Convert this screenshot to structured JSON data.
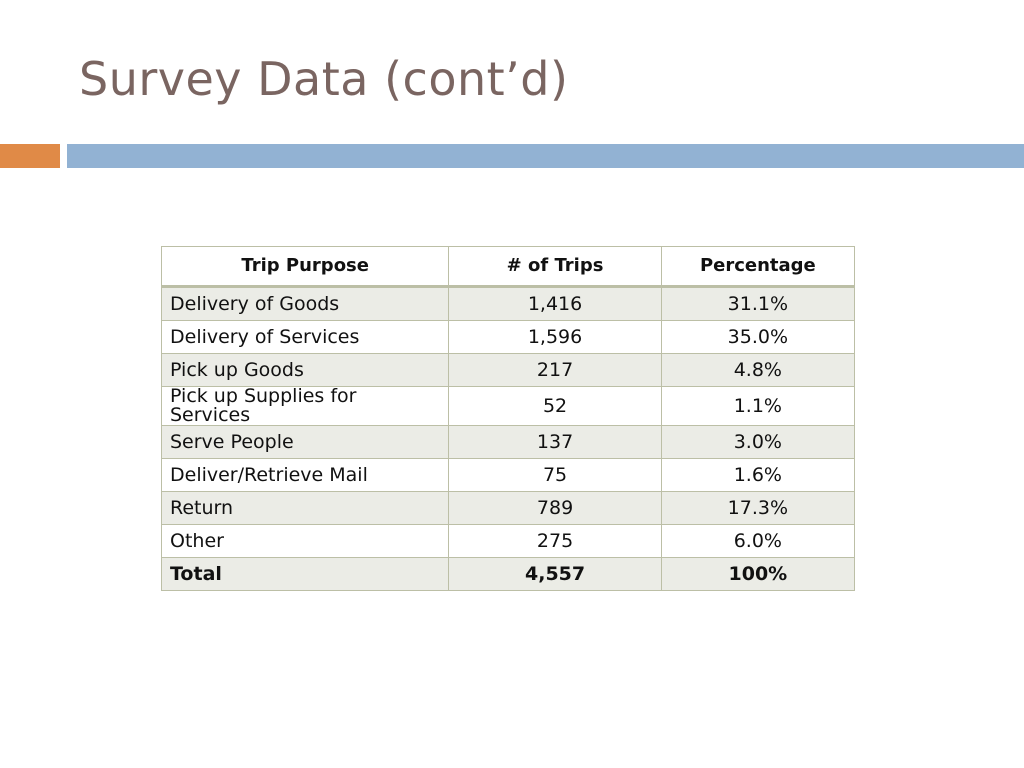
{
  "slide": {
    "title": "Survey Data (cont’d)"
  },
  "table": {
    "headers": [
      "Trip Purpose",
      "# of Trips",
      "Percentage"
    ],
    "rows": [
      {
        "purpose": "Delivery of Goods",
        "trips": "1,416",
        "pct": "31.1%"
      },
      {
        "purpose": "Delivery of Services",
        "trips": "1,596",
        "pct": "35.0%"
      },
      {
        "purpose": "Pick up Goods",
        "trips": "217",
        "pct": "4.8%"
      },
      {
        "purpose": "Pick up Supplies for Services",
        "trips": "52",
        "pct": "1.1%"
      },
      {
        "purpose": "Serve People",
        "trips": "137",
        "pct": "3.0%"
      },
      {
        "purpose": "Deliver/Retrieve Mail",
        "trips": "75",
        "pct": "1.6%"
      },
      {
        "purpose": "Return",
        "trips": "789",
        "pct": "17.3%"
      },
      {
        "purpose": "Other",
        "trips": "275",
        "pct": "6.0%"
      }
    ],
    "total": {
      "purpose": "Total",
      "trips": "4,557",
      "pct": "100%"
    }
  },
  "colors": {
    "title": "#7a6561",
    "accent_orange": "#e08a47",
    "rule_blue": "#92b2d3",
    "row_shade": "#ebece6",
    "border": "#bcbfa6"
  }
}
